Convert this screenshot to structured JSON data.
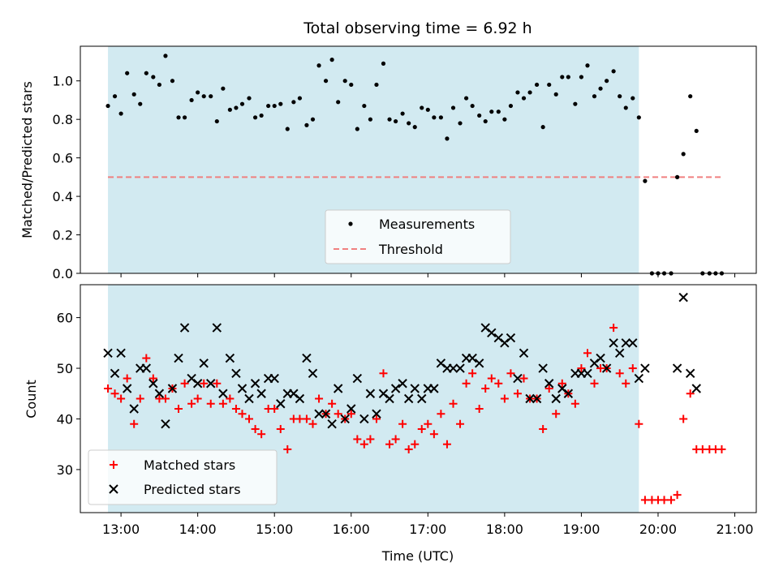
{
  "chart_data": [
    {
      "type": "scatter",
      "title": "Total observing time = 6.92 h",
      "ylabel": "Matched/Predicted stars",
      "xlim": [
        12.47,
        21.28
      ],
      "ylim": [
        0.0,
        1.18
      ],
      "yticks": [
        0.0,
        0.2,
        0.4,
        0.6,
        0.8,
        1.0
      ],
      "grid": false,
      "shaded_interval": [
        12.83,
        19.75
      ],
      "shade_color": "#add8e6",
      "legend_position": "lower-center",
      "legend": [
        {
          "label": "Measurements",
          "marker": "dot",
          "color": "#000000"
        },
        {
          "label": "Threshold",
          "marker": "dashed-line",
          "color": "#f08080"
        }
      ],
      "threshold": {
        "x": [
          12.83,
          20.83
        ],
        "y": 0.5
      },
      "measurements": {
        "x": [
          12.83,
          12.92,
          13.0,
          13.08,
          13.17,
          13.25,
          13.33,
          13.42,
          13.5,
          13.58,
          13.67,
          13.75,
          13.83,
          13.92,
          14.0,
          14.08,
          14.17,
          14.25,
          14.33,
          14.42,
          14.5,
          14.58,
          14.67,
          14.75,
          14.83,
          14.92,
          15.0,
          15.08,
          15.17,
          15.25,
          15.33,
          15.42,
          15.5,
          15.58,
          15.67,
          15.75,
          15.83,
          15.92,
          16.0,
          16.08,
          16.17,
          16.25,
          16.33,
          16.42,
          16.5,
          16.58,
          16.67,
          16.75,
          16.83,
          16.92,
          17.0,
          17.08,
          17.17,
          17.25,
          17.33,
          17.42,
          17.5,
          17.58,
          17.67,
          17.75,
          17.83,
          17.92,
          18.0,
          18.08,
          18.17,
          18.25,
          18.33,
          18.42,
          18.5,
          18.58,
          18.67,
          18.75,
          18.83,
          18.92,
          19.0,
          19.08,
          19.17,
          19.25,
          19.33,
          19.42,
          19.5,
          19.58,
          19.67,
          19.75,
          19.83,
          19.92,
          20.0,
          20.08,
          20.17,
          20.25,
          20.33,
          20.42,
          20.5,
          20.58,
          20.67,
          20.75,
          20.83
        ],
        "y": [
          0.87,
          0.92,
          0.83,
          1.04,
          0.93,
          0.88,
          1.04,
          1.02,
          0.98,
          1.13,
          1.0,
          0.81,
          0.81,
          0.9,
          0.94,
          0.92,
          0.92,
          0.79,
          0.96,
          0.85,
          0.86,
          0.88,
          0.91,
          0.81,
          0.82,
          0.87,
          0.87,
          0.88,
          0.75,
          0.89,
          0.91,
          0.77,
          0.8,
          1.08,
          1.0,
          1.11,
          0.89,
          1.0,
          0.98,
          0.75,
          0.87,
          0.8,
          0.98,
          1.09,
          0.8,
          0.79,
          0.83,
          0.78,
          0.76,
          0.86,
          0.85,
          0.81,
          0.81,
          0.7,
          0.86,
          0.78,
          0.91,
          0.87,
          0.82,
          0.79,
          0.84,
          0.84,
          0.8,
          0.87,
          0.94,
          0.91,
          0.94,
          0.98,
          0.76,
          0.98,
          0.93,
          1.02,
          1.02,
          0.88,
          1.02,
          1.08,
          0.92,
          0.96,
          1.0,
          1.05,
          0.92,
          0.86,
          0.91,
          0.81,
          0.48,
          0.0,
          0.0,
          0.0,
          0.0,
          0.5,
          0.62,
          0.92,
          0.74,
          0.0,
          0.0,
          0.0,
          0.0
        ]
      }
    },
    {
      "type": "scatter",
      "xlabel": "Time (UTC)",
      "ylabel": "Count",
      "xlim": [
        12.47,
        21.28
      ],
      "ylim": [
        21.5,
        66.5
      ],
      "yticks": [
        30,
        40,
        50,
        60
      ],
      "xticks": [
        13,
        14,
        15,
        16,
        17,
        18,
        19,
        20,
        21
      ],
      "xtick_labels": [
        "13:00",
        "14:00",
        "15:00",
        "16:00",
        "17:00",
        "18:00",
        "19:00",
        "20:00",
        "21:00"
      ],
      "grid": false,
      "shaded_interval": [
        12.83,
        19.75
      ],
      "shade_color": "#add8e6",
      "legend_position": "lower-left",
      "series": [
        {
          "name": "Matched stars",
          "marker": "plus",
          "color": "#ff0000",
          "x": [
            12.83,
            12.92,
            13.0,
            13.08,
            13.17,
            13.25,
            13.33,
            13.42,
            13.5,
            13.58,
            13.67,
            13.75,
            13.83,
            13.92,
            14.0,
            14.08,
            14.17,
            14.25,
            14.33,
            14.42,
            14.5,
            14.58,
            14.67,
            14.75,
            14.83,
            14.92,
            15.0,
            15.08,
            15.17,
            15.25,
            15.33,
            15.42,
            15.5,
            15.58,
            15.67,
            15.75,
            15.83,
            15.92,
            16.0,
            16.08,
            16.17,
            16.25,
            16.33,
            16.42,
            16.5,
            16.58,
            16.67,
            16.75,
            16.83,
            16.92,
            17.0,
            17.08,
            17.17,
            17.25,
            17.33,
            17.42,
            17.5,
            17.58,
            17.67,
            17.75,
            17.83,
            17.92,
            18.0,
            18.08,
            18.17,
            18.25,
            18.33,
            18.42,
            18.5,
            18.58,
            18.67,
            18.75,
            18.83,
            18.92,
            19.0,
            19.08,
            19.17,
            19.25,
            19.33,
            19.42,
            19.5,
            19.58,
            19.67,
            19.75,
            19.83,
            19.92,
            20.0,
            20.08,
            20.17,
            20.25,
            20.33,
            20.42,
            20.5,
            20.58,
            20.67,
            20.75,
            20.83
          ],
          "y": [
            46,
            45,
            44,
            48,
            39,
            44,
            52,
            48,
            44,
            44,
            46,
            42,
            47,
            43,
            44,
            47,
            43,
            47,
            43,
            44,
            42,
            41,
            40,
            38,
            37,
            42,
            42,
            38,
            34,
            40,
            40,
            40,
            39,
            44,
            41,
            43,
            41,
            40,
            41,
            36,
            35,
            36,
            40,
            49,
            35,
            36,
            39,
            34,
            35,
            38,
            39,
            37,
            41,
            35,
            43,
            39,
            47,
            49,
            42,
            46,
            48,
            47,
            44,
            49,
            45,
            48,
            44,
            44,
            38,
            46,
            41,
            47,
            45,
            43,
            50,
            53,
            47,
            50,
            50,
            58,
            49,
            47,
            50,
            39,
            24,
            24,
            24,
            24,
            24,
            25,
            40,
            45,
            34,
            34,
            34,
            34,
            34
          ]
        },
        {
          "name": "Predicted stars",
          "marker": "x",
          "color": "#000000",
          "x": [
            12.83,
            12.92,
            13.0,
            13.08,
            13.17,
            13.25,
            13.33,
            13.42,
            13.5,
            13.58,
            13.67,
            13.75,
            13.83,
            13.92,
            14.0,
            14.08,
            14.17,
            14.25,
            14.33,
            14.42,
            14.5,
            14.58,
            14.67,
            14.75,
            14.83,
            14.92,
            15.0,
            15.08,
            15.17,
            15.25,
            15.33,
            15.42,
            15.5,
            15.58,
            15.67,
            15.75,
            15.83,
            15.92,
            16.0,
            16.08,
            16.17,
            16.25,
            16.33,
            16.42,
            16.5,
            16.58,
            16.67,
            16.75,
            16.83,
            16.92,
            17.0,
            17.08,
            17.17,
            17.25,
            17.33,
            17.42,
            17.5,
            17.58,
            17.67,
            17.75,
            17.83,
            17.92,
            18.0,
            18.08,
            18.17,
            18.25,
            18.33,
            18.42,
            18.5,
            18.58,
            18.67,
            18.75,
            18.83,
            18.92,
            19.0,
            19.08,
            19.17,
            19.25,
            19.33,
            19.42,
            19.5,
            19.58,
            19.67,
            19.75,
            19.83,
            20.25,
            20.33,
            20.42,
            20.5
          ],
          "y": [
            53,
            49,
            53,
            46,
            42,
            50,
            50,
            47,
            45,
            39,
            46,
            52,
            58,
            48,
            47,
            51,
            47,
            58,
            45,
            52,
            49,
            46,
            44,
            47,
            45,
            48,
            48,
            43,
            45,
            45,
            44,
            52,
            49,
            41,
            41,
            39,
            46,
            40,
            42,
            48,
            40,
            45,
            41,
            45,
            44,
            46,
            47,
            44,
            46,
            44,
            46,
            46,
            51,
            50,
            50,
            50,
            52,
            52,
            51,
            58,
            57,
            56,
            55,
            56,
            48,
            53,
            44,
            44,
            50,
            47,
            44,
            46,
            45,
            49,
            49,
            49,
            51,
            52,
            50,
            55,
            53,
            55,
            55,
            48,
            50,
            50,
            64,
            49,
            46
          ]
        }
      ]
    }
  ]
}
